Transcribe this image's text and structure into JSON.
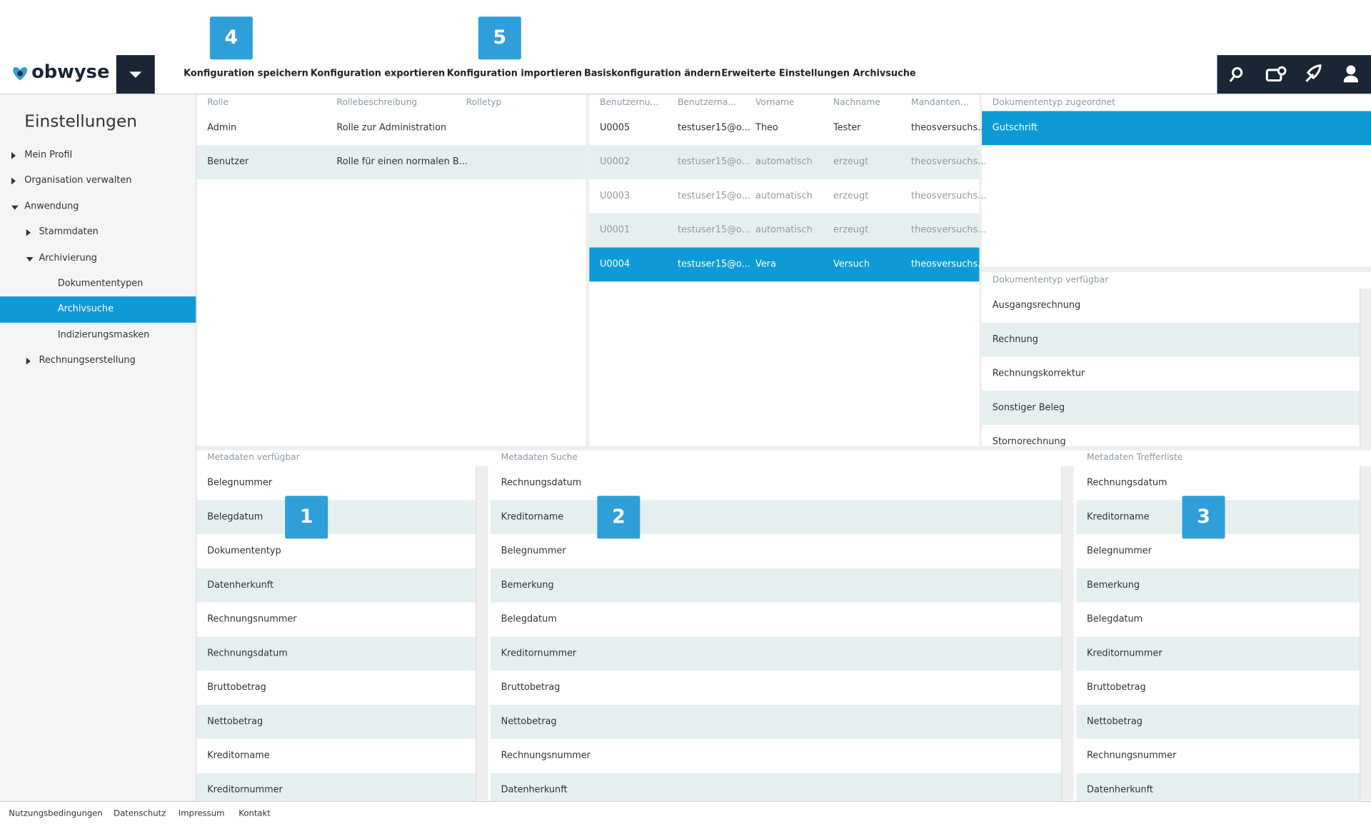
{
  "header": {
    "logo": "obwyse",
    "toolbar": [
      "Konfiguration speichern",
      "Konfiguration exportieren",
      "Konfiguration importieren",
      "Basiskonfiguration ändern",
      "Erweiterte Einstellungen Archivsuche"
    ],
    "badges": [
      "4",
      "5"
    ]
  },
  "sidebar": {
    "title": "Einstellungen",
    "tree": [
      {
        "label": "Mein Profil",
        "depth": 0,
        "state": "collapsed"
      },
      {
        "label": "Organisation verwalten",
        "depth": 0,
        "state": "collapsed"
      },
      {
        "label": "Anwendung",
        "depth": 0,
        "state": "expanded"
      },
      {
        "label": "Stammdaten",
        "depth": 1,
        "state": "collapsed"
      },
      {
        "label": "Archivierung",
        "depth": 1,
        "state": "expanded"
      },
      {
        "label": "Dokumententypen",
        "depth": 2,
        "state": "leaf"
      },
      {
        "label": "Archivsuche",
        "depth": 2,
        "state": "leaf",
        "selected": true
      },
      {
        "label": "Indizierungsmasken",
        "depth": 2,
        "state": "leaf"
      },
      {
        "label": "Rechnungserstellung",
        "depth": 1,
        "state": "collapsed"
      }
    ]
  },
  "roles": {
    "headers": [
      "Rolle",
      "Rollebeschreibung",
      "Rolletyp"
    ],
    "rows": [
      [
        "Admin",
        "Rolle zur Administration"
      ],
      [
        "Benutzer",
        "Rolle für einen normalen B..."
      ]
    ]
  },
  "users": {
    "headers": [
      "Benutzernu...",
      "Benutzerna...",
      "Vorname",
      "Nachname",
      "Mandanten..."
    ],
    "rows": [
      [
        "U0005",
        "testuser15@o...",
        "Theo",
        "Tester",
        "theosversuchs..."
      ],
      [
        "U0002",
        "testuser15@o...",
        "automatisch",
        "erzeugt",
        "theosversuchs..."
      ],
      [
        "U0003",
        "testuser15@o...",
        "automatisch",
        "erzeugt",
        "theosversuchs..."
      ],
      [
        "U0001",
        "testuser15@o...",
        "automatisch",
        "erzeugt",
        "theosversuchs..."
      ],
      [
        "U0004",
        "testuser15@o...",
        "Vera",
        "Versuch",
        "theosversuchs..."
      ]
    ],
    "selected_row": 4,
    "inactive_rows": [
      1,
      2,
      3
    ]
  },
  "doc_assigned": {
    "header": "Dokumententyp zugeordnet",
    "items": [
      "Gutschrift"
    ],
    "selected_row": 0
  },
  "doc_available": {
    "header": "Dokumententyp verfügbar",
    "items": [
      "Ausgangsrechnung",
      "Rechnung",
      "Rechnungskorrektur",
      "Sonstiger Beleg",
      "Stornorechnung"
    ]
  },
  "metadata": [
    {
      "header": "Metadaten verfügbar",
      "badge": "1",
      "items": [
        "Belegnummer",
        "Belegdatum",
        "Dokumententyp",
        "Datenherkunft",
        "Rechnungsnummer",
        "Rechnungsdatum",
        "Bruttobetrag",
        "Nettobetrag",
        "Kreditorname",
        "Kreditornummer"
      ]
    },
    {
      "header": "Metadaten Suche",
      "badge": "2",
      "items": [
        "Rechnungsdatum",
        "Kreditorname",
        "Belegnummer",
        "Bemerkung",
        "Belegdatum",
        "Kreditornummer",
        "Bruttobetrag",
        "Nettobetrag",
        "Rechnungsnummer",
        "Datenherkunft"
      ]
    },
    {
      "header": "Metadaten Trefferliste",
      "badge": "3",
      "items": [
        "Rechnungsdatum",
        "Kreditorname",
        "Belegnummer",
        "Bemerkung",
        "Belegdatum",
        "Kreditornummer",
        "Bruttobetrag",
        "Nettobetrag",
        "Rechnungsnummer",
        "Datenherkunft"
      ]
    }
  ],
  "footer": [
    "Nutzungsbedingungen",
    "Datenschutz",
    "Impressum",
    "Kontakt"
  ]
}
